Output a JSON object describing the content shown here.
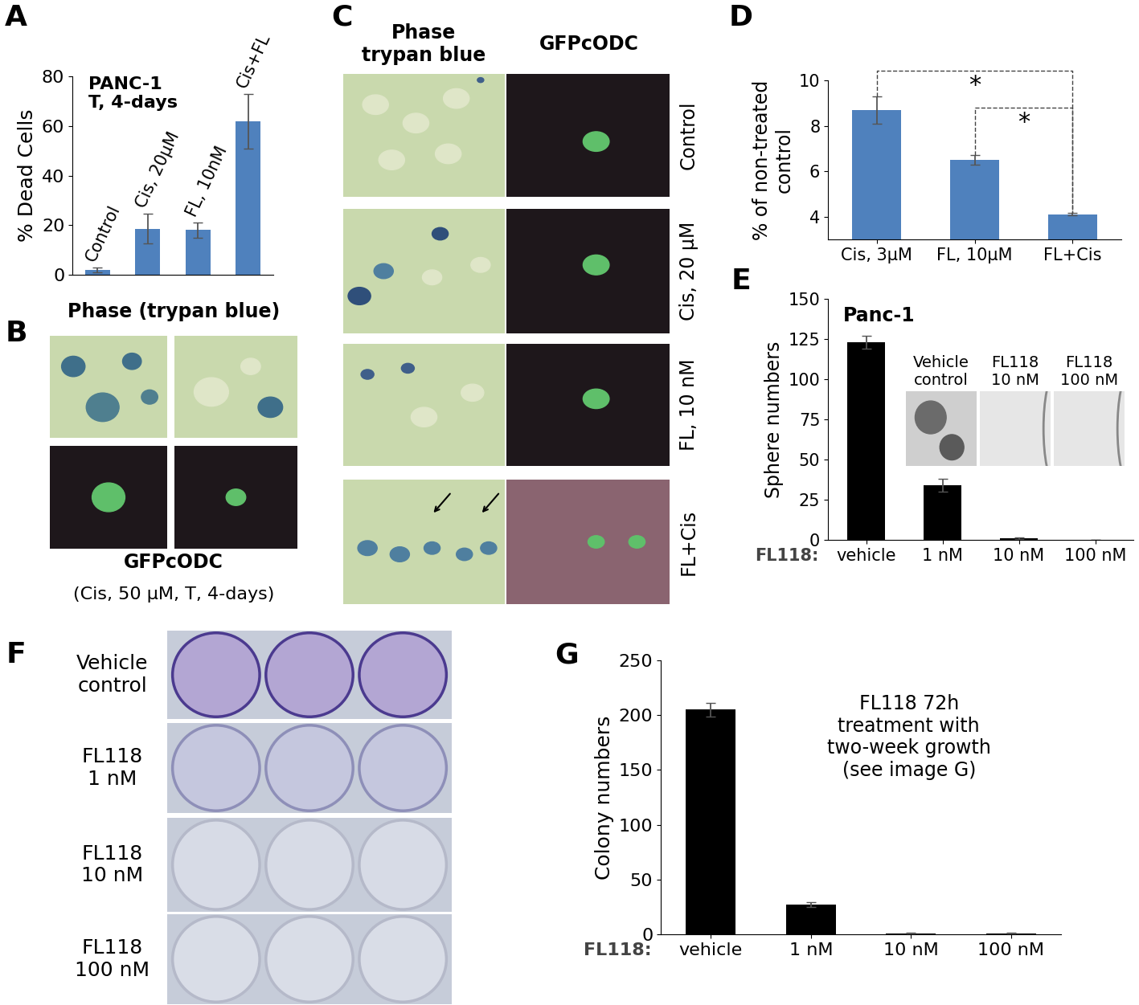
{
  "panel_labels": [
    "A",
    "B",
    "C",
    "D",
    "E",
    "F",
    "G"
  ],
  "chart_data": [
    {
      "type": "bar",
      "title": "PANC-1\nT, 4-days",
      "categories": [
        "Control",
        "Cis, 20μM",
        "FL, 10nM",
        "Cis+FL"
      ],
      "values": [
        2,
        18.5,
        18,
        62
      ],
      "errors": [
        1,
        6,
        3,
        11
      ],
      "color": "#4f81bd",
      "ylabel": "% Dead Cells",
      "ylim": [
        0,
        80
      ],
      "yticks": [
        0,
        20,
        40,
        60,
        80
      ],
      "tick_labels": "y"
    },
    {
      "type": "bar",
      "categories": [
        "Cis, 3μM",
        "FL, 10μM",
        "FL+Cis"
      ],
      "values": [
        8.7,
        6.5,
        4.1
      ],
      "errors": [
        0.6,
        0.2,
        0.05
      ],
      "color": "#4f81bd",
      "ylabel": "% of non-treated\ncontrol",
      "ylim": [
        3,
        10
      ],
      "yticks": [
        4,
        6,
        8,
        10
      ],
      "annotations": [
        {
          "text": "*",
          "between": [
            0,
            2
          ]
        },
        {
          "text": "*",
          "between": [
            1,
            2
          ]
        }
      ]
    },
    {
      "type": "bar",
      "title": "Panc-1",
      "categories": [
        "vehicle",
        "1 nM",
        "10 nM",
        "100 nM"
      ],
      "values": [
        123,
        34,
        1,
        0
      ],
      "errors": [
        4,
        4,
        0.3,
        0
      ],
      "color": "#000000",
      "xlabel": "FL118:",
      "ylabel": "Sphere numbers",
      "ylim": [
        0,
        150
      ],
      "yticks": [
        0,
        25,
        50,
        75,
        100,
        125,
        150
      ],
      "inset_labels": [
        "Vehicle\ncontrol",
        "FL118\n10 nM",
        "FL118\n100 nM"
      ]
    },
    {
      "type": "bar",
      "categories": [
        "vehicle",
        "1 nM",
        "10 nM",
        "100 nM"
      ],
      "values": [
        205,
        27,
        1,
        1
      ],
      "errors": [
        6,
        2,
        0.3,
        0.3
      ],
      "color": "#000000",
      "xlabel": "FL118:",
      "ylabel": "Colony numbers",
      "ylim": [
        0,
        250
      ],
      "yticks": [
        0,
        50,
        100,
        150,
        200,
        250
      ],
      "annotations": [
        {
          "text": "FL118 72h\ntreatment with\ntwo-week growth\n(see image G)"
        }
      ]
    }
  ],
  "images": {
    "B": {
      "title": "Phase (trypan blue)",
      "caption": "GFPcODC",
      "subcaption": "(Cis, 50 μM, T, 4-days)"
    },
    "C": {
      "columns": [
        "Phase\ntrypan blue",
        "GFPcODC"
      ],
      "rows": [
        "Control",
        "Cis, 20 μM",
        "FL, 10 nM",
        "FL+Cis"
      ]
    },
    "F": {
      "rows": [
        "Vehicle\ncontrol",
        "FL118\n1 nM",
        "FL118\n10 nM",
        "FL118\n100 nM"
      ]
    }
  }
}
